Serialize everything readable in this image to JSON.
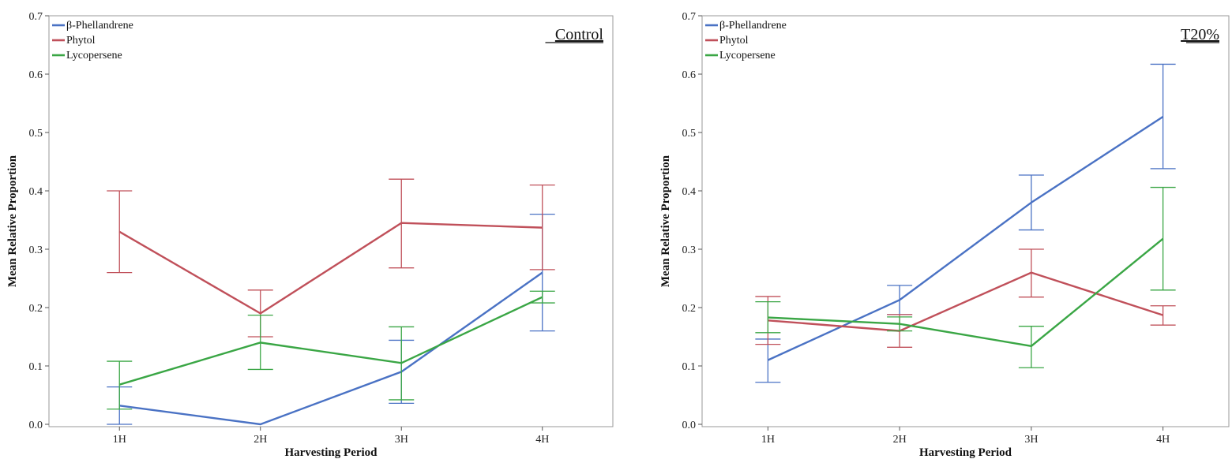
{
  "chart_data": [
    {
      "type": "line",
      "title": "",
      "panel_label": "Control",
      "xlabel": "Harvesting Period",
      "ylabel": "Mean Relative Proportion",
      "categories": [
        "1H",
        "2H",
        "3H",
        "4H"
      ],
      "ylim": [
        0,
        0.7
      ],
      "yticks": [
        "0.0",
        "0.1",
        "0.2",
        "0.3",
        "0.4",
        "0.5",
        "0.6",
        "0.7"
      ],
      "legend_position": "top-left",
      "grid": false,
      "series": [
        {
          "name": "β-Phellandrene",
          "color": "#4a72c4",
          "values": [
            0.032,
            0.0,
            0.09,
            0.26
          ],
          "err_low": [
            0.0,
            0.0,
            0.036,
            0.16
          ],
          "err_high": [
            0.064,
            0.0,
            0.144,
            0.36
          ]
        },
        {
          "name": "Phytol",
          "color": "#c0505a",
          "values": [
            0.33,
            0.19,
            0.345,
            0.337
          ],
          "err_low": [
            0.26,
            0.15,
            0.268,
            0.265
          ],
          "err_high": [
            0.4,
            0.23,
            0.42,
            0.41
          ]
        },
        {
          "name": "Lycopersene",
          "color": "#3aa645",
          "values": [
            0.068,
            0.14,
            0.105,
            0.218
          ],
          "err_low": [
            0.026,
            0.094,
            0.042,
            0.208
          ],
          "err_high": [
            0.108,
            0.187,
            0.167,
            0.228
          ]
        }
      ]
    },
    {
      "type": "line",
      "title": "",
      "panel_label": "T20%",
      "xlabel": "Harvesting Period",
      "ylabel": "Mean Relative Proportion",
      "categories": [
        "1H",
        "2H",
        "3H",
        "4H"
      ],
      "ylim": [
        0,
        0.7
      ],
      "yticks": [
        "0.0",
        "0.1",
        "0.2",
        "0.3",
        "0.4",
        "0.5",
        "0.6",
        "0.7"
      ],
      "legend_position": "top-left",
      "grid": false,
      "series": [
        {
          "name": "β-Phellandrene",
          "color": "#4a72c4",
          "values": [
            0.11,
            0.213,
            0.38,
            0.527
          ],
          "err_low": [
            0.072,
            0.188,
            0.333,
            0.438
          ],
          "err_high": [
            0.146,
            0.238,
            0.427,
            0.617
          ]
        },
        {
          "name": "Phytol",
          "color": "#c0505a",
          "values": [
            0.178,
            0.16,
            0.26,
            0.187
          ],
          "err_low": [
            0.137,
            0.132,
            0.218,
            0.17
          ],
          "err_high": [
            0.219,
            0.188,
            0.3,
            0.203
          ]
        },
        {
          "name": "Lycopersene",
          "color": "#3aa645",
          "values": [
            0.183,
            0.172,
            0.134,
            0.318
          ],
          "err_low": [
            0.157,
            0.16,
            0.097,
            0.23
          ],
          "err_high": [
            0.21,
            0.184,
            0.168,
            0.406
          ]
        }
      ]
    }
  ]
}
